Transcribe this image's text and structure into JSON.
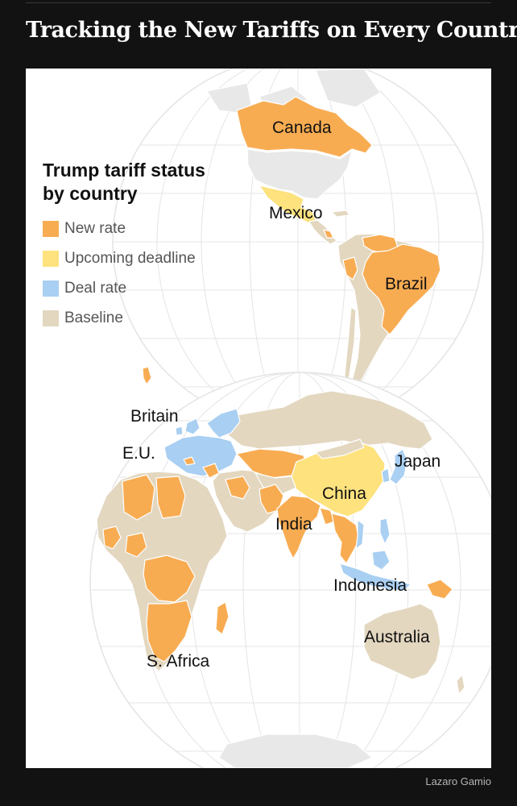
{
  "headline": "Tracking the New Tariffs on Every Country",
  "credit": "Lazaro Gamio",
  "legend": {
    "title_line1": "Trump tariff status",
    "title_line2": "by country",
    "items": [
      {
        "label": "New rate",
        "color": "#F8AC52"
      },
      {
        "label": "Upcoming deadline",
        "color": "#FDE27E"
      },
      {
        "label": "Deal rate",
        "color": "#A9CFF2"
      },
      {
        "label": "Baseline",
        "color": "#E3D7C0"
      }
    ]
  },
  "colors": {
    "no_data": "#E8E8E8",
    "graticule": "#E4E4E4",
    "border": "#FFFFFF"
  },
  "labels": {
    "canada": "Canada",
    "mexico": "Mexico",
    "brazil": "Brazil",
    "britain": "Britain",
    "eu": "E.U.",
    "japan": "Japan",
    "china": "China",
    "india": "India",
    "indonesia": "Indonesia",
    "australia": "Australia",
    "safrica": "S. Africa"
  }
}
